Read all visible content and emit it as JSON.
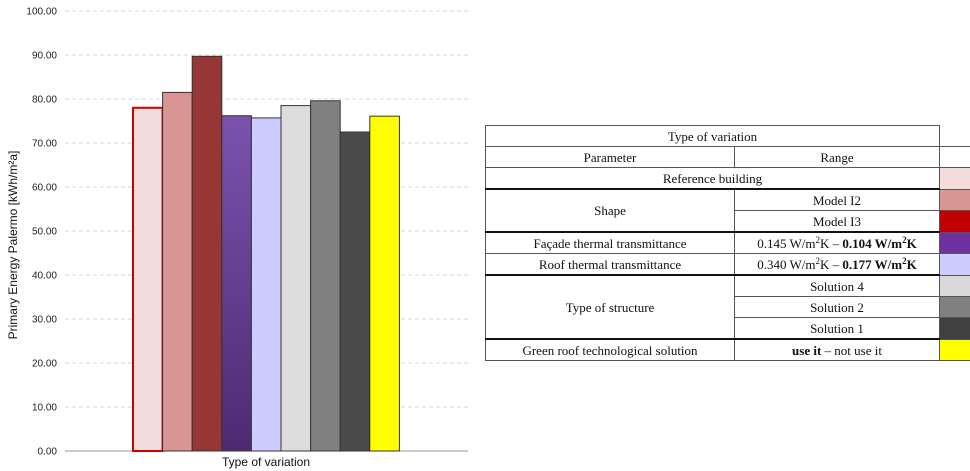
{
  "chart_data": {
    "type": "bar",
    "title": "",
    "xlabel": "Type of variation",
    "ylabel": "Primary Energy Palermo [kWh/m²a]",
    "ylim": [
      0,
      100
    ],
    "yticks": [
      "0.00",
      "10.00",
      "20.00",
      "30.00",
      "40.00",
      "50.00",
      "60.00",
      "70.00",
      "80.00",
      "90.00",
      "100.00"
    ],
    "grid": true,
    "series": [
      {
        "value": 78.0,
        "color": "#f2dcdc",
        "stroke": "#cc0000"
      },
      {
        "value": 81.5,
        "color": "#d99594",
        "stroke": "#333333"
      },
      {
        "value": 89.7,
        "color": "#953735",
        "stroke": "#333333"
      },
      {
        "value": 76.2,
        "color": "#7030a0",
        "stroke": "#333333"
      },
      {
        "value": 75.7,
        "color": "#ccccff",
        "stroke": "#333333"
      },
      {
        "value": 78.5,
        "color": "#dddddd",
        "stroke": "#333333"
      },
      {
        "value": 79.6,
        "color": "#808080",
        "stroke": "#333333"
      },
      {
        "value": 72.5,
        "color": "#4a4a4a",
        "stroke": "#333333"
      },
      {
        "value": 76.1,
        "color": "#ffff00",
        "stroke": "#333333"
      }
    ]
  },
  "legend": {
    "header": "Type of variation",
    "col_parameter": "Parameter",
    "col_range": "Range",
    "reference": "Reference building",
    "shape_label": "Shape",
    "shape_i2": "Model I2",
    "shape_i3": "Model I3",
    "facade_label": "Façade thermal transmittance",
    "facade_from": "0.145 W/m",
    "facade_from_sup": "2",
    "facade_from_unit": "K – ",
    "facade_to": "0.104 W/m",
    "facade_to_sup": "2",
    "facade_to_unit": "K",
    "roof_label": "Roof thermal transmittance",
    "roof_from": "0.340 W/m",
    "roof_from_sup": "2",
    "roof_from_unit": "K – ",
    "roof_to": "0.177 W/m",
    "roof_to_sup": "2",
    "roof_to_unit": "K",
    "structure_label": "Type of structure",
    "structure_s4": "Solution 4",
    "structure_s2": "Solution 2",
    "structure_s1": "Solution 1",
    "green_label": "Green roof technological solution",
    "green_use": "use it",
    "green_rest": " – not use it",
    "swatches": [
      "#f2dcdc",
      "#d99594",
      "#c00000",
      "#7030a0",
      "#ccccff",
      "#d9d9d9",
      "#808080",
      "#404040",
      "#ffff00"
    ]
  }
}
